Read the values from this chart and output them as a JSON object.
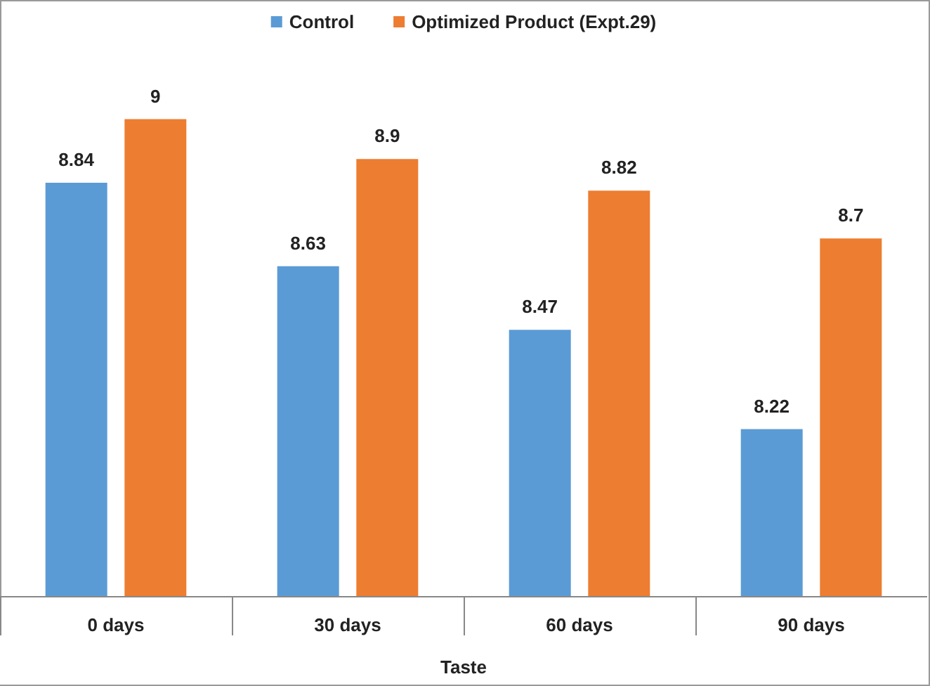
{
  "chart_data": {
    "type": "bar",
    "xlabel": "Taste",
    "categories": [
      "0 days",
      "30 days",
      "60 days",
      "90 days"
    ],
    "series": [
      {
        "name": "Control",
        "color": "#5b9bd5",
        "values": [
          8.84,
          8.63,
          8.47,
          8.22
        ]
      },
      {
        "name": "Optimized Product (Expt.29)",
        "color": "#ed7d31",
        "values": [
          9,
          8.9,
          8.82,
          8.7
        ]
      }
    ],
    "ylim": [
      7.8,
      9.3
    ],
    "tick_labels": "x",
    "data_labels": true,
    "legend": "top",
    "grid": false
  }
}
